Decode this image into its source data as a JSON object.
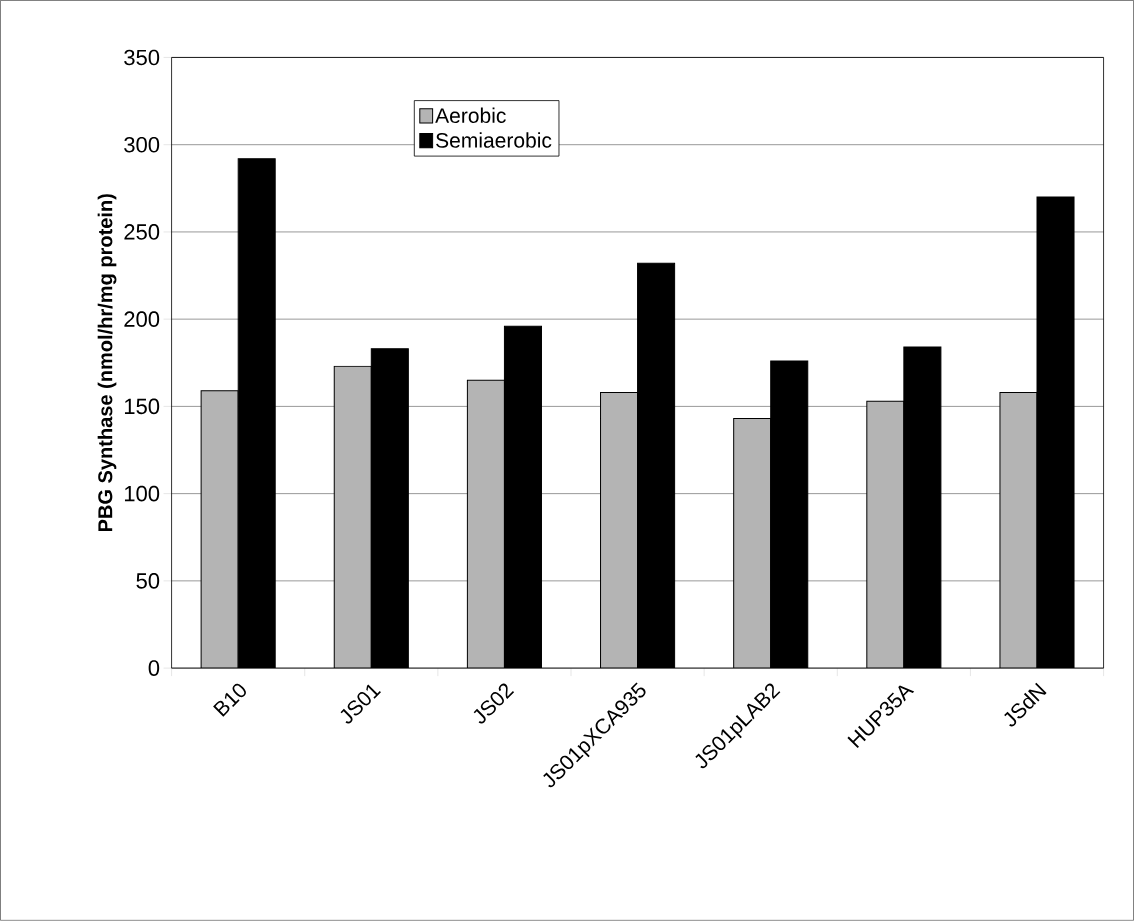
{
  "chart_data": {
    "type": "bar",
    "ylabel": "PBG Synthase (nmol/hr/mg protein)",
    "categories": [
      "B10",
      "JS01",
      "JS02",
      "JS01pXCA935",
      "JS01pLAB2",
      "HUP35A",
      "JSdN"
    ],
    "series": [
      {
        "name": "Aerobic",
        "color": "#b4b4b4",
        "values": [
          159,
          173,
          165,
          158,
          143,
          153,
          158
        ]
      },
      {
        "name": "Semiaerobic",
        "color": "#000000",
        "values": [
          292,
          183,
          196,
          232,
          176,
          184,
          270
        ]
      }
    ],
    "ylim": [
      0,
      350
    ],
    "yticks": [
      0,
      50,
      100,
      150,
      200,
      250,
      300,
      350
    ],
    "grid": "y",
    "legend": "top"
  }
}
